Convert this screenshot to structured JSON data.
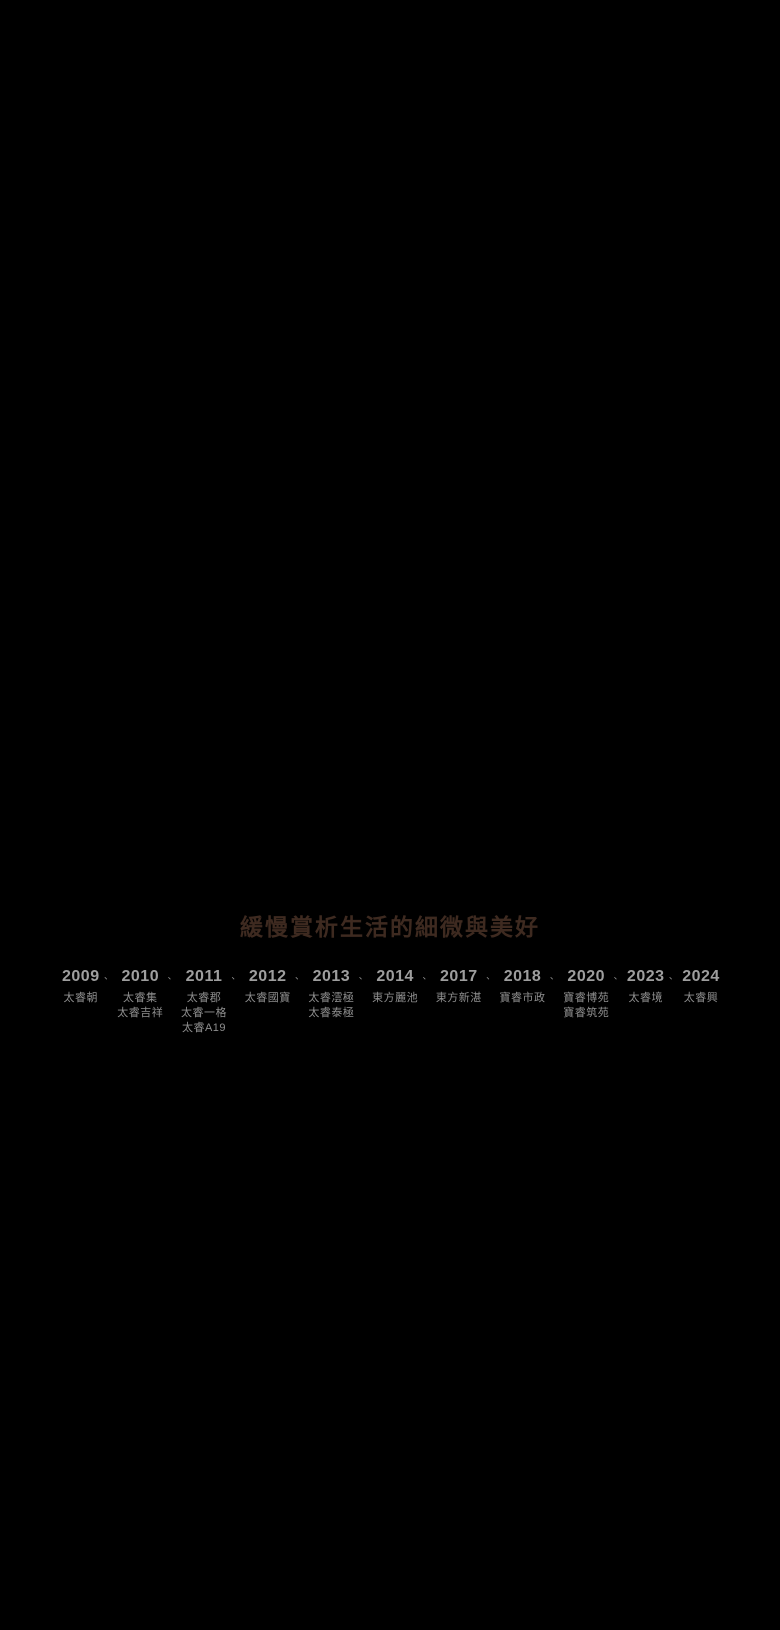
{
  "page": {
    "background_color": "#000000"
  },
  "header": {
    "title": "緩慢賞析生活的細微與美好",
    "color": "#3e2a20"
  },
  "timeline": {
    "separator": "、",
    "year_color": "#9e9e9e",
    "project_color": "#8f8f8f",
    "columns": [
      {
        "year": "2009",
        "projects": [
          "太睿朝"
        ]
      },
      {
        "year": "2010",
        "projects": [
          "太睿集",
          "太睿吉祥"
        ]
      },
      {
        "year": "2011",
        "projects": [
          "太睿郡",
          "太睿一格",
          "太睿A19"
        ]
      },
      {
        "year": "2012",
        "projects": [
          "太睿國寶"
        ]
      },
      {
        "year": "2013",
        "projects": [
          "太睿澐極",
          "太睿泰極"
        ]
      },
      {
        "year": "2014",
        "projects": [
          "東方麗池"
        ]
      },
      {
        "year": "2017",
        "projects": [
          "東方新湛"
        ]
      },
      {
        "year": "2018",
        "projects": [
          "寶睿市政"
        ]
      },
      {
        "year": "2020",
        "projects": [
          "寶睿博苑",
          "寶睿筑苑"
        ]
      },
      {
        "year": "2023",
        "projects": [
          "太睿境"
        ]
      },
      {
        "year": "2024",
        "projects": [
          "太睿興"
        ]
      }
    ]
  }
}
